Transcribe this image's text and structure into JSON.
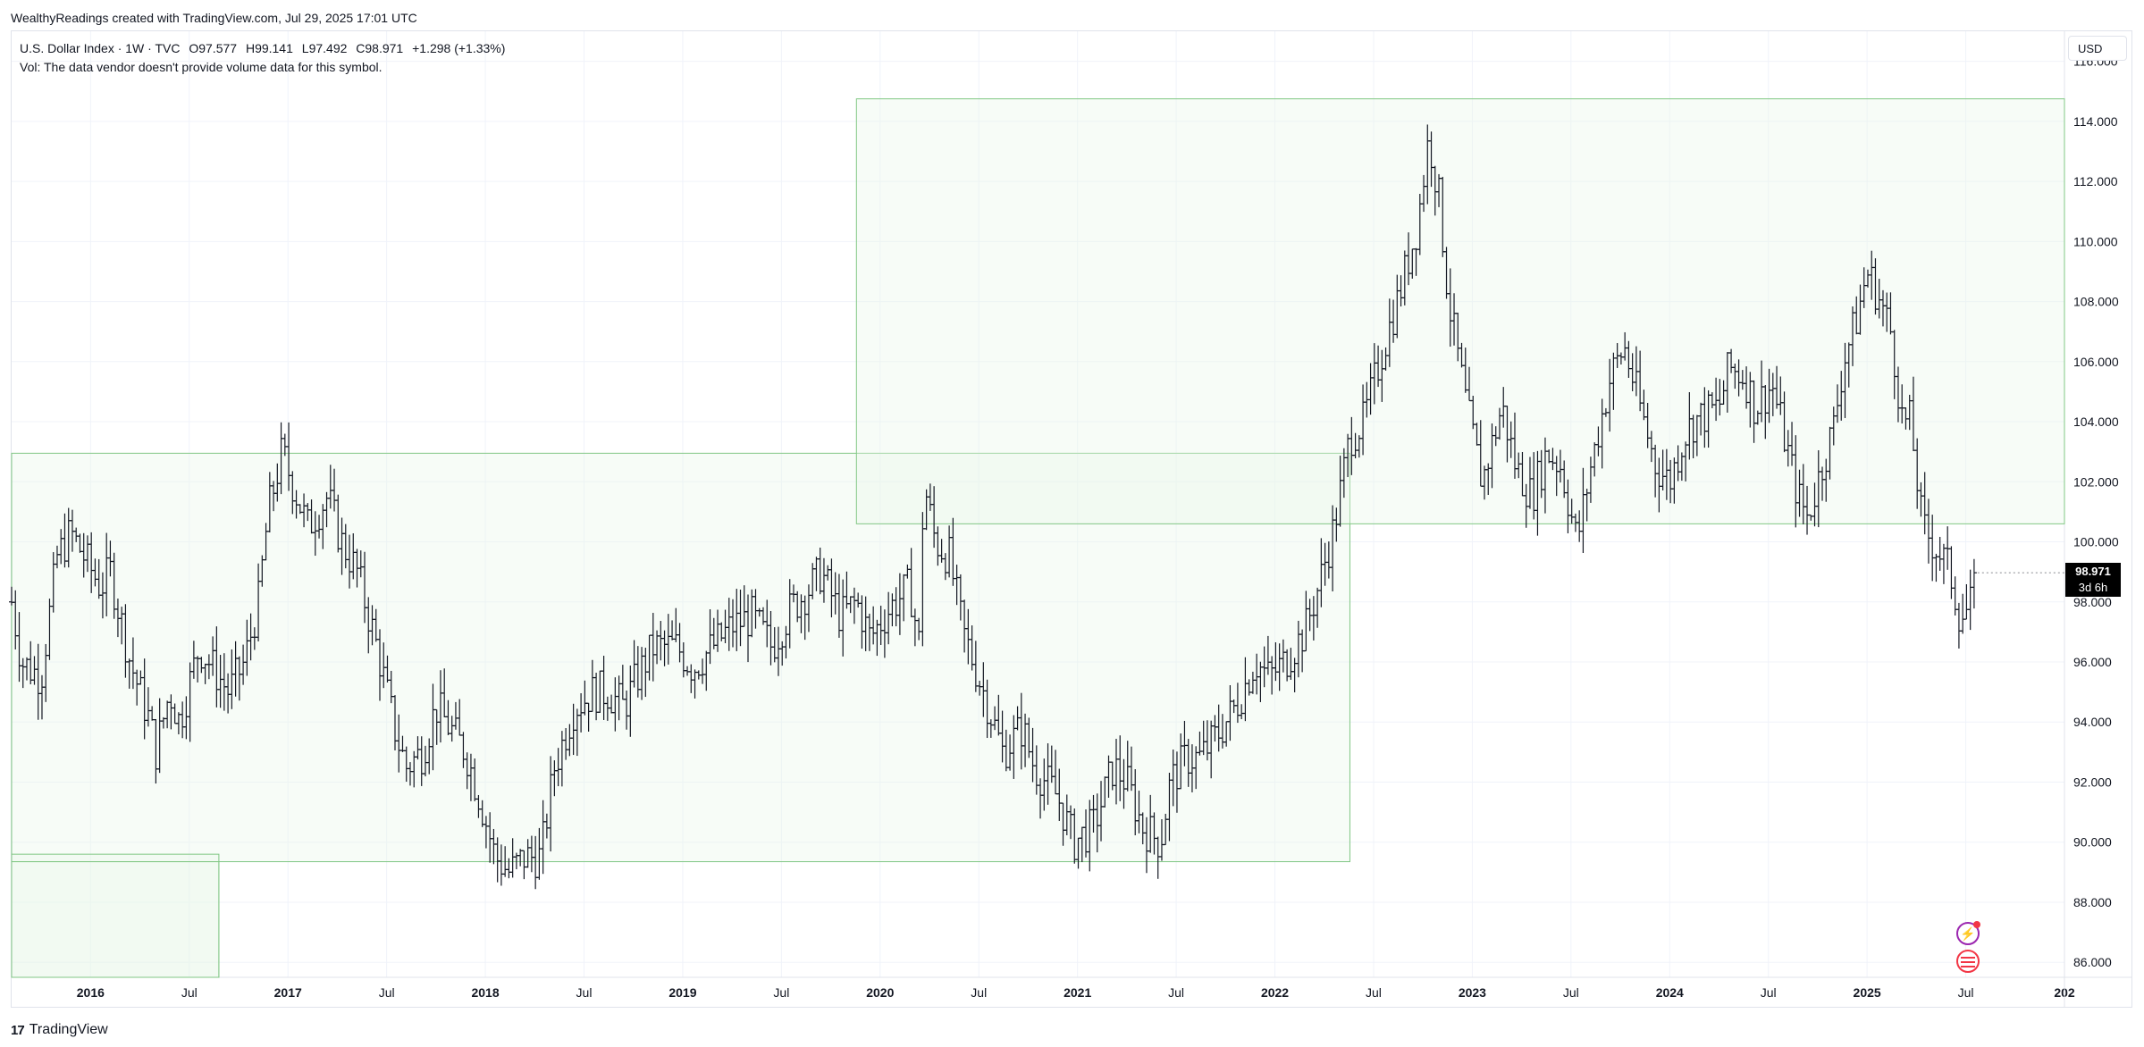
{
  "header": {
    "credit": "WealthyReadings created with TradingView.com, Jul 29, 2025 17:01 UTC"
  },
  "legend": {
    "symbol": "U.S. Dollar Index · 1W · TVC",
    "open": "O97.577",
    "high": "H99.141",
    "low": "L97.492",
    "close": "C98.971",
    "change": "+1.298 (+1.33%)",
    "vol_note": "Vol: The data vendor doesn't provide volume data for this symbol."
  },
  "currency": "USD",
  "price_tag": {
    "price": "98.971",
    "countdown": "3d 6h"
  },
  "footer": {
    "brand": "TradingView"
  },
  "colors": {
    "candle": "#131722",
    "zone_stroke": "#81c784",
    "zone_fill": "#e8f5e9",
    "grid": "#f0f3fa",
    "axis_text": "#131722"
  },
  "chart_data": {
    "type": "ohlc_bar",
    "title": "U.S. Dollar Index",
    "interval": "1W",
    "ylim": [
      85.5,
      117
    ],
    "y_ticks": [
      "86.000",
      "88.000",
      "90.000",
      "92.000",
      "94.000",
      "96.000",
      "98.000",
      "100.000",
      "102.000",
      "104.000",
      "106.000",
      "108.000",
      "110.000",
      "112.000",
      "114.000",
      "116.000"
    ],
    "x_ticks": [
      {
        "label": "2016",
        "t": 2016.0,
        "bold": true
      },
      {
        "label": "Jul",
        "t": 2016.5,
        "bold": false
      },
      {
        "label": "2017",
        "t": 2017.0,
        "bold": true
      },
      {
        "label": "Jul",
        "t": 2017.5,
        "bold": false
      },
      {
        "label": "2018",
        "t": 2018.0,
        "bold": true
      },
      {
        "label": "Jul",
        "t": 2018.5,
        "bold": false
      },
      {
        "label": "2019",
        "t": 2019.0,
        "bold": true
      },
      {
        "label": "Jul",
        "t": 2019.5,
        "bold": false
      },
      {
        "label": "2020",
        "t": 2020.0,
        "bold": true
      },
      {
        "label": "Jul",
        "t": 2020.5,
        "bold": false
      },
      {
        "label": "2021",
        "t": 2021.0,
        "bold": true
      },
      {
        "label": "Jul",
        "t": 2021.5,
        "bold": false
      },
      {
        "label": "2022",
        "t": 2022.0,
        "bold": true
      },
      {
        "label": "Jul",
        "t": 2022.5,
        "bold": false
      },
      {
        "label": "2023",
        "t": 2023.0,
        "bold": true
      },
      {
        "label": "Jul",
        "t": 2023.5,
        "bold": false
      },
      {
        "label": "2024",
        "t": 2024.0,
        "bold": true
      },
      {
        "label": "Jul",
        "t": 2024.5,
        "bold": false
      },
      {
        "label": "2025",
        "t": 2025.0,
        "bold": true
      },
      {
        "label": "Jul",
        "t": 2025.5,
        "bold": false
      },
      {
        "label": "202",
        "t": 2026.0,
        "bold": true
      }
    ],
    "x_range": [
      2015.6,
      2026.0
    ],
    "anchors": [
      [
        2015.6,
        98.0
      ],
      [
        2015.65,
        96.0
      ],
      [
        2015.75,
        95.5
      ],
      [
        2015.83,
        99.5
      ],
      [
        2015.9,
        100.3
      ],
      [
        2016.05,
        98.5
      ],
      [
        2016.1,
        99.0
      ],
      [
        2016.2,
        96.0
      ],
      [
        2016.3,
        94.0
      ],
      [
        2016.33,
        93.0
      ],
      [
        2016.4,
        95.0
      ],
      [
        2016.45,
        94.0
      ],
      [
        2016.55,
        96.5
      ],
      [
        2016.6,
        96.0
      ],
      [
        2016.7,
        95.0
      ],
      [
        2016.78,
        96.0
      ],
      [
        2016.85,
        98.0
      ],
      [
        2016.9,
        101.0
      ],
      [
        2016.97,
        103.0
      ],
      [
        2017.02,
        102.0
      ],
      [
        2017.1,
        100.5
      ],
      [
        2017.2,
        101.5
      ],
      [
        2017.27,
        100.0
      ],
      [
        2017.35,
        99.0
      ],
      [
        2017.45,
        96.5
      ],
      [
        2017.55,
        93.5
      ],
      [
        2017.6,
        92.5
      ],
      [
        2017.68,
        93.0
      ],
      [
        2017.75,
        94.5
      ],
      [
        2017.85,
        93.5
      ],
      [
        2017.9,
        93.0
      ],
      [
        2017.97,
        91.5
      ],
      [
        2018.05,
        89.5
      ],
      [
        2018.12,
        89.0
      ],
      [
        2018.2,
        89.5
      ],
      [
        2018.28,
        89.5
      ],
      [
        2018.35,
        92.5
      ],
      [
        2018.45,
        94.5
      ],
      [
        2018.55,
        95.0
      ],
      [
        2018.62,
        95.0
      ],
      [
        2018.7,
        94.5
      ],
      [
        2018.77,
        95.5
      ],
      [
        2018.85,
        96.5
      ],
      [
        2018.97,
        96.5
      ],
      [
        2019.05,
        95.8
      ],
      [
        2019.15,
        96.5
      ],
      [
        2019.25,
        97.2
      ],
      [
        2019.35,
        97.5
      ],
      [
        2019.45,
        96.5
      ],
      [
        2019.55,
        97.8
      ],
      [
        2019.65,
        98.5
      ],
      [
        2019.7,
        99.0
      ],
      [
        2019.8,
        97.5
      ],
      [
        2019.88,
        98.0
      ],
      [
        2019.95,
        96.8
      ],
      [
        2020.05,
        97.8
      ],
      [
        2020.15,
        98.5
      ],
      [
        2020.2,
        96.5
      ],
      [
        2020.22,
        102.0
      ],
      [
        2020.28,
        100.0
      ],
      [
        2020.35,
        99.5
      ],
      [
        2020.42,
        97.0
      ],
      [
        2020.55,
        94.5
      ],
      [
        2020.62,
        93.0
      ],
      [
        2020.72,
        93.8
      ],
      [
        2020.78,
        92.5
      ],
      [
        2020.9,
        91.5
      ],
      [
        2020.98,
        90.0
      ],
      [
        2021.08,
        90.5
      ],
      [
        2021.18,
        92.5
      ],
      [
        2021.25,
        92.0
      ],
      [
        2021.33,
        90.5
      ],
      [
        2021.42,
        90.0
      ],
      [
        2021.47,
        92.0
      ],
      [
        2021.55,
        92.8
      ],
      [
        2021.62,
        92.8
      ],
      [
        2021.7,
        93.5
      ],
      [
        2021.8,
        94.5
      ],
      [
        2021.9,
        96.0
      ],
      [
        2021.97,
        95.5
      ],
      [
        2022.05,
        96.0
      ],
      [
        2022.15,
        97.0
      ],
      [
        2022.22,
        98.5
      ],
      [
        2022.3,
        100.5
      ],
      [
        2022.38,
        103.5
      ],
      [
        2022.45,
        104.0
      ],
      [
        2022.55,
        106.5
      ],
      [
        2022.62,
        108.0
      ],
      [
        2022.72,
        110.5
      ],
      [
        2022.78,
        113.5
      ],
      [
        2022.83,
        111.5
      ],
      [
        2022.88,
        108.0
      ],
      [
        2022.97,
        104.5
      ],
      [
        2023.05,
        102.0
      ],
      [
        2023.15,
        104.5
      ],
      [
        2023.22,
        102.5
      ],
      [
        2023.3,
        101.5
      ],
      [
        2023.38,
        103.0
      ],
      [
        2023.45,
        102.5
      ],
      [
        2023.53,
        100.0
      ],
      [
        2023.6,
        102.5
      ],
      [
        2023.7,
        105.5
      ],
      [
        2023.77,
        106.5
      ],
      [
        2023.85,
        104.5
      ],
      [
        2023.93,
        102.5
      ],
      [
        2024.0,
        102.0
      ],
      [
        2024.07,
        103.5
      ],
      [
        2024.12,
        104.0
      ],
      [
        2024.25,
        104.5
      ],
      [
        2024.3,
        105.8
      ],
      [
        2024.38,
        105.5
      ],
      [
        2024.43,
        104.5
      ],
      [
        2024.52,
        105.2
      ],
      [
        2024.58,
        103.5
      ],
      [
        2024.65,
        101.5
      ],
      [
        2024.7,
        100.8
      ],
      [
        2024.77,
        102.5
      ],
      [
        2024.83,
        103.8
      ],
      [
        2024.88,
        106.0
      ],
      [
        2024.95,
        107.5
      ],
      [
        2025.0,
        109.0
      ],
      [
        2025.05,
        108.3
      ],
      [
        2025.12,
        107.0
      ],
      [
        2025.18,
        104.0
      ],
      [
        2025.22,
        104.0
      ],
      [
        2025.28,
        100.5
      ],
      [
        2025.33,
        100.0
      ],
      [
        2025.38,
        99.5
      ],
      [
        2025.42,
        99.0
      ],
      [
        2025.47,
        97.5
      ],
      [
        2025.52,
        97.8
      ],
      [
        2025.56,
        98.97
      ]
    ],
    "series": [
      {
        "name": "U.S. Dollar Index",
        "color": "#131722"
      }
    ],
    "last_close": 98.971
  },
  "zones": [
    {
      "t0": 2015.6,
      "t1": 2022.38,
      "y0": 89.35,
      "y1": 102.95
    },
    {
      "t0": 2019.88,
      "t1": 2026.0,
      "y0": 100.6,
      "y1": 114.75
    },
    {
      "t0": 2015.6,
      "t1": 2016.65,
      "y0": 85.5,
      "y1": 89.6
    },
    {
      "t0": 2015.6,
      "t1": 2016.65,
      "y0": 85.5,
      "y1": 89.35
    }
  ]
}
